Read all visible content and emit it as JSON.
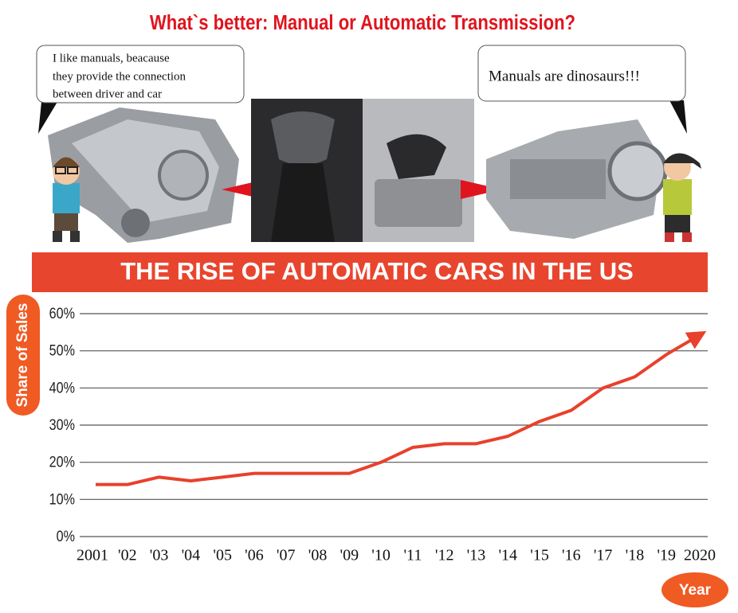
{
  "header": {
    "title": "What`s better: Manual or Automatic Transmission?",
    "left_bubble": {
      "lines": [
        "I like manuals, beacause",
        "they provide the connection",
        "between driver and car"
      ]
    },
    "right_bubble": {
      "text": "Manuals are dinosaurs!!!"
    }
  },
  "chart_data": {
    "type": "line",
    "title": "THE RISE OF AUTOMATIC CARS IN THE US",
    "y_label": "Share of Sales",
    "x_label": "Year",
    "categories": [
      "2001",
      "'02",
      "'03",
      "'04",
      "'05",
      "'06",
      "'07",
      "'08",
      "'09",
      "'10",
      "'11",
      "'12",
      "'13",
      "'14",
      "'15",
      "'16",
      "'17",
      "'18",
      "'19",
      "2020"
    ],
    "values": [
      14,
      14,
      16,
      15,
      16,
      17,
      17,
      17,
      17,
      20,
      24,
      25,
      25,
      27,
      31,
      34,
      40,
      43,
      49,
      54
    ],
    "color": "#e8412c",
    "ylim": [
      0,
      60
    ],
    "yticks": [
      {
        "value": 0,
        "label": "0%"
      },
      {
        "value": 10,
        "label": "10%"
      },
      {
        "value": 20,
        "label": "20%"
      },
      {
        "value": 30,
        "label": "30%"
      },
      {
        "value": 40,
        "label": "40%"
      },
      {
        "value": 50,
        "label": "50%"
      },
      {
        "value": 60,
        "label": "60%"
      }
    ],
    "grid": true
  }
}
